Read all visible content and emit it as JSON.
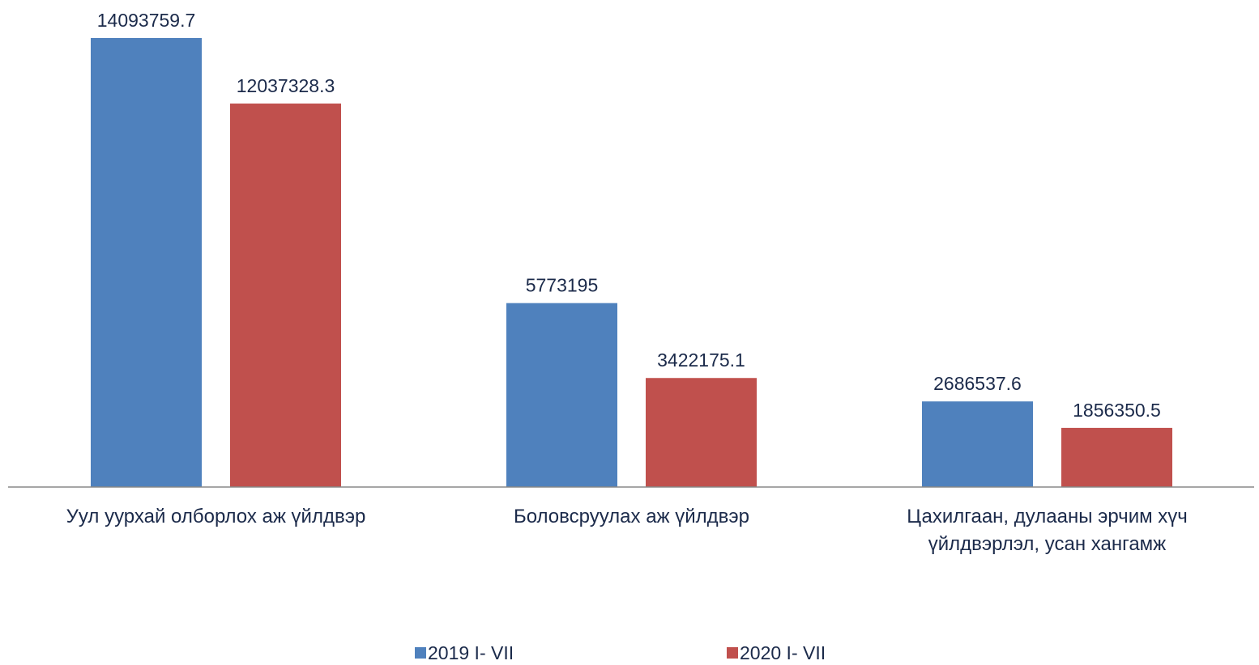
{
  "chart_data": {
    "type": "bar",
    "categories": [
      "Уул уурхай олборлох аж үйлдвэр",
      "Боловсруулах аж үйлдвэр",
      "Цахилгаан, дулааны эрчим хүч үйлдвэрлэл, усан хангамж"
    ],
    "series": [
      {
        "name": "2019 I- VII",
        "color": "#4f81bd",
        "values": [
          14093759.7,
          5773195,
          2686537.6
        ]
      },
      {
        "name": "2020 I- VII",
        "color": "#c0504d",
        "values": [
          12037328.3,
          3422175.1,
          1856350.5
        ]
      }
    ],
    "ylim": [
      0,
      14500000
    ]
  }
}
